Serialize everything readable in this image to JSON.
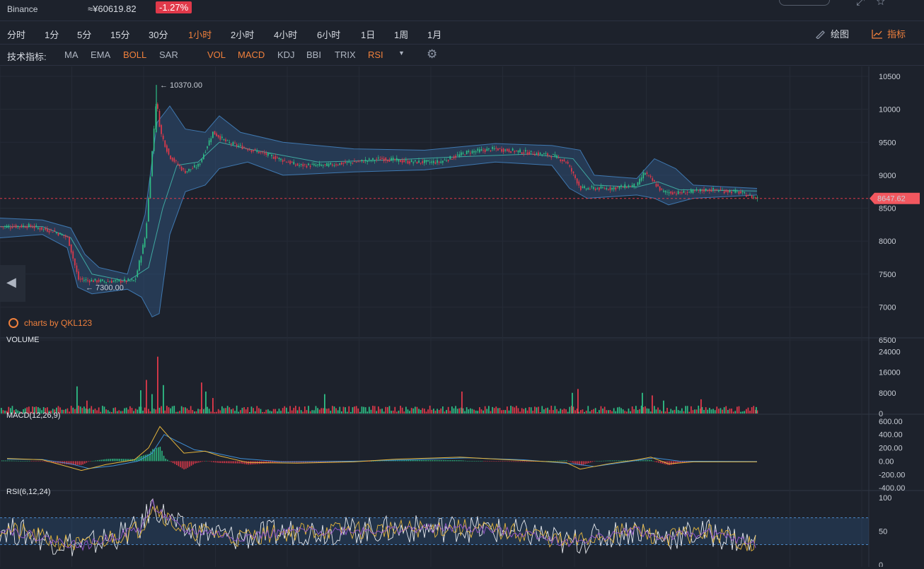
{
  "header": {
    "exchange": "Binance",
    "price": "≈¥60619.82",
    "change": "-1.27%",
    "down_color": "#e0394a",
    "up_color": "#2ebd85",
    "accent": "#f0803c"
  },
  "periods": [
    "分时",
    "1分",
    "5分",
    "15分",
    "30分",
    "1小时",
    "2小时",
    "4小时",
    "6小时",
    "1日",
    "1周",
    "1月"
  ],
  "active_period": "1小时",
  "toolbar": {
    "draw_label": "绘图",
    "indicator_label": "指标"
  },
  "indicator_bar": {
    "label": "技术指标:",
    "main": [
      {
        "name": "MA",
        "active": false
      },
      {
        "name": "EMA",
        "active": false
      },
      {
        "name": "BOLL",
        "active": true
      },
      {
        "name": "SAR",
        "active": false
      }
    ],
    "sub": [
      {
        "name": "VOL",
        "active": true
      },
      {
        "name": "MACD",
        "active": true
      },
      {
        "name": "KDJ",
        "active": false
      },
      {
        "name": "BBI",
        "active": false
      },
      {
        "name": "TRIX",
        "active": false
      },
      {
        "name": "RSI",
        "active": true
      }
    ]
  },
  "watermark": "charts by QKL123",
  "chart_data": [
    {
      "type": "candlestick",
      "pane": "price",
      "y_ticks": [
        10500,
        10000,
        9500,
        9000,
        8500,
        8000,
        7500,
        7000,
        6500
      ],
      "ylim": [
        6500,
        10500
      ],
      "last_price_label": "8647.62",
      "last_price": 8647.62,
      "max_label": "10370.00",
      "max_value": 10370,
      "min_label": "7300.00",
      "min_value": 7300,
      "trend_points": [
        [
          0,
          8220
        ],
        [
          40,
          8230
        ],
        [
          75,
          8150
        ],
        [
          95,
          8050
        ],
        [
          110,
          7420
        ],
        [
          130,
          7400
        ],
        [
          150,
          7390
        ],
        [
          190,
          7400
        ],
        [
          205,
          8100
        ],
        [
          220,
          10150
        ],
        [
          226,
          9650
        ],
        [
          238,
          9300
        ],
        [
          260,
          9050
        ],
        [
          280,
          9150
        ],
        [
          300,
          9650
        ],
        [
          320,
          9500
        ],
        [
          350,
          9400
        ],
        [
          380,
          9300
        ],
        [
          420,
          9150
        ],
        [
          460,
          9150
        ],
        [
          500,
          9200
        ],
        [
          540,
          9250
        ],
        [
          580,
          9200
        ],
        [
          620,
          9200
        ],
        [
          660,
          9350
        ],
        [
          700,
          9400
        ],
        [
          740,
          9350
        ],
        [
          780,
          9300
        ],
        [
          800,
          9200
        ],
        [
          820,
          8800
        ],
        [
          860,
          8800
        ],
        [
          900,
          8850
        ],
        [
          910,
          9050
        ],
        [
          935,
          8750
        ],
        [
          960,
          8730
        ],
        [
          1000,
          8780
        ],
        [
          1040,
          8750
        ],
        [
          1070,
          8650
        ]
      ],
      "boll_upper": [
        [
          0,
          8350
        ],
        [
          60,
          8320
        ],
        [
          100,
          8200
        ],
        [
          120,
          7800
        ],
        [
          140,
          7600
        ],
        [
          180,
          7500
        ],
        [
          205,
          8400
        ],
        [
          222,
          9800
        ],
        [
          240,
          10050
        ],
        [
          262,
          9700
        ],
        [
          290,
          9650
        ],
        [
          310,
          9900
        ],
        [
          340,
          9650
        ],
        [
          400,
          9500
        ],
        [
          500,
          9400
        ],
        [
          600,
          9380
        ],
        [
          700,
          9480
        ],
        [
          780,
          9450
        ],
        [
          820,
          9380
        ],
        [
          840,
          9000
        ],
        [
          900,
          8950
        ],
        [
          925,
          9250
        ],
        [
          955,
          9100
        ],
        [
          980,
          8850
        ],
        [
          1070,
          8800
        ]
      ],
      "boll_lower": [
        [
          0,
          8050
        ],
        [
          60,
          8100
        ],
        [
          95,
          7900
        ],
        [
          110,
          7300
        ],
        [
          130,
          7200
        ],
        [
          180,
          7270
        ],
        [
          200,
          7150
        ],
        [
          215,
          6850
        ],
        [
          225,
          6900
        ],
        [
          240,
          8100
        ],
        [
          262,
          8750
        ],
        [
          290,
          8850
        ],
        [
          310,
          9100
        ],
        [
          350,
          9200
        ],
        [
          400,
          9000
        ],
        [
          500,
          9050
        ],
        [
          600,
          9080
        ],
        [
          700,
          9200
        ],
        [
          780,
          9150
        ],
        [
          805,
          8800
        ],
        [
          830,
          8650
        ],
        [
          900,
          8700
        ],
        [
          925,
          8650
        ],
        [
          945,
          8550
        ],
        [
          980,
          8650
        ],
        [
          1070,
          8700
        ]
      ],
      "boll_mid": [
        [
          0,
          8220
        ],
        [
          60,
          8220
        ],
        [
          100,
          8050
        ],
        [
          130,
          7500
        ],
        [
          180,
          7390
        ],
        [
          210,
          7600
        ],
        [
          230,
          8500
        ],
        [
          250,
          9150
        ],
        [
          280,
          9200
        ],
        [
          310,
          9500
        ],
        [
          350,
          9400
        ],
        [
          450,
          9200
        ],
        [
          550,
          9230
        ],
        [
          650,
          9280
        ],
        [
          750,
          9320
        ],
        [
          810,
          9250
        ],
        [
          840,
          8850
        ],
        [
          900,
          8820
        ],
        [
          930,
          8900
        ],
        [
          960,
          8780
        ],
        [
          1070,
          8760
        ]
      ]
    },
    {
      "type": "bar",
      "pane": "volume",
      "title": "VOLUME",
      "y_ticks": [
        24000,
        16000,
        8000,
        0
      ],
      "ylim": [
        0,
        26000
      ],
      "spikes": [
        [
          108,
          10500
        ],
        [
          122,
          5000
        ],
        [
          198,
          9000
        ],
        [
          206,
          13000
        ],
        [
          214,
          7500
        ],
        [
          222,
          22000
        ],
        [
          230,
          11000
        ],
        [
          284,
          12000
        ],
        [
          290,
          8500
        ],
        [
          300,
          6000
        ],
        [
          458,
          7500
        ],
        [
          652,
          8500
        ],
        [
          808,
          8000
        ],
        [
          816,
          9500
        ],
        [
          907,
          8000
        ],
        [
          921,
          7000
        ],
        [
          937,
          5000
        ],
        [
          990,
          5500
        ],
        [
          1068,
          2500
        ]
      ],
      "base_level": 1800
    },
    {
      "type": "line",
      "pane": "macd",
      "title": "MACD(12,26,9)",
      "y_ticks": [
        600,
        400,
        200,
        0,
        -200,
        -400
      ],
      "tick_labels": [
        "600.00",
        "400.00",
        "200.00",
        "0.00",
        "-200.00",
        "-400.00"
      ],
      "ylim": [
        -420,
        620
      ],
      "dif": [
        [
          10,
          40
        ],
        [
          60,
          20
        ],
        [
          95,
          -80
        ],
        [
          115,
          -140
        ],
        [
          150,
          -50
        ],
        [
          190,
          20
        ],
        [
          210,
          200
        ],
        [
          226,
          520
        ],
        [
          240,
          350
        ],
        [
          260,
          120
        ],
        [
          290,
          150
        ],
        [
          310,
          80
        ],
        [
          350,
          -20
        ],
        [
          420,
          -30
        ],
        [
          500,
          -10
        ],
        [
          560,
          30
        ],
        [
          650,
          60
        ],
        [
          720,
          20
        ],
        [
          800,
          -20
        ],
        [
          820,
          -120
        ],
        [
          860,
          -40
        ],
        [
          900,
          20
        ],
        [
          920,
          60
        ],
        [
          945,
          -40
        ],
        [
          980,
          -10
        ],
        [
          1070,
          -10
        ]
      ],
      "dea": [
        [
          10,
          30
        ],
        [
          60,
          25
        ],
        [
          100,
          -40
        ],
        [
          125,
          -110
        ],
        [
          160,
          -70
        ],
        [
          195,
          0
        ],
        [
          215,
          120
        ],
        [
          232,
          400
        ],
        [
          250,
          300
        ],
        [
          275,
          170
        ],
        [
          300,
          130
        ],
        [
          340,
          40
        ],
        [
          400,
          -10
        ],
        [
          500,
          0
        ],
        [
          580,
          20
        ],
        [
          660,
          50
        ],
        [
          740,
          20
        ],
        [
          810,
          -40
        ],
        [
          840,
          -80
        ],
        [
          880,
          -20
        ],
        [
          925,
          50
        ],
        [
          960,
          0
        ],
        [
          1070,
          -5
        ]
      ],
      "hist": [
        [
          205,
          60
        ],
        [
          215,
          120
        ],
        [
          225,
          100
        ],
        [
          235,
          50
        ],
        [
          245,
          -40
        ],
        [
          260,
          -60
        ],
        [
          275,
          -30
        ],
        [
          110,
          -50
        ],
        [
          120,
          -40
        ]
      ]
    },
    {
      "type": "line",
      "pane": "rsi",
      "title": "RSI(6,12,24)",
      "y_ticks": [
        100,
        50,
        0
      ],
      "ylim": [
        0,
        100
      ],
      "overbought": 70,
      "oversold": 30
    }
  ]
}
